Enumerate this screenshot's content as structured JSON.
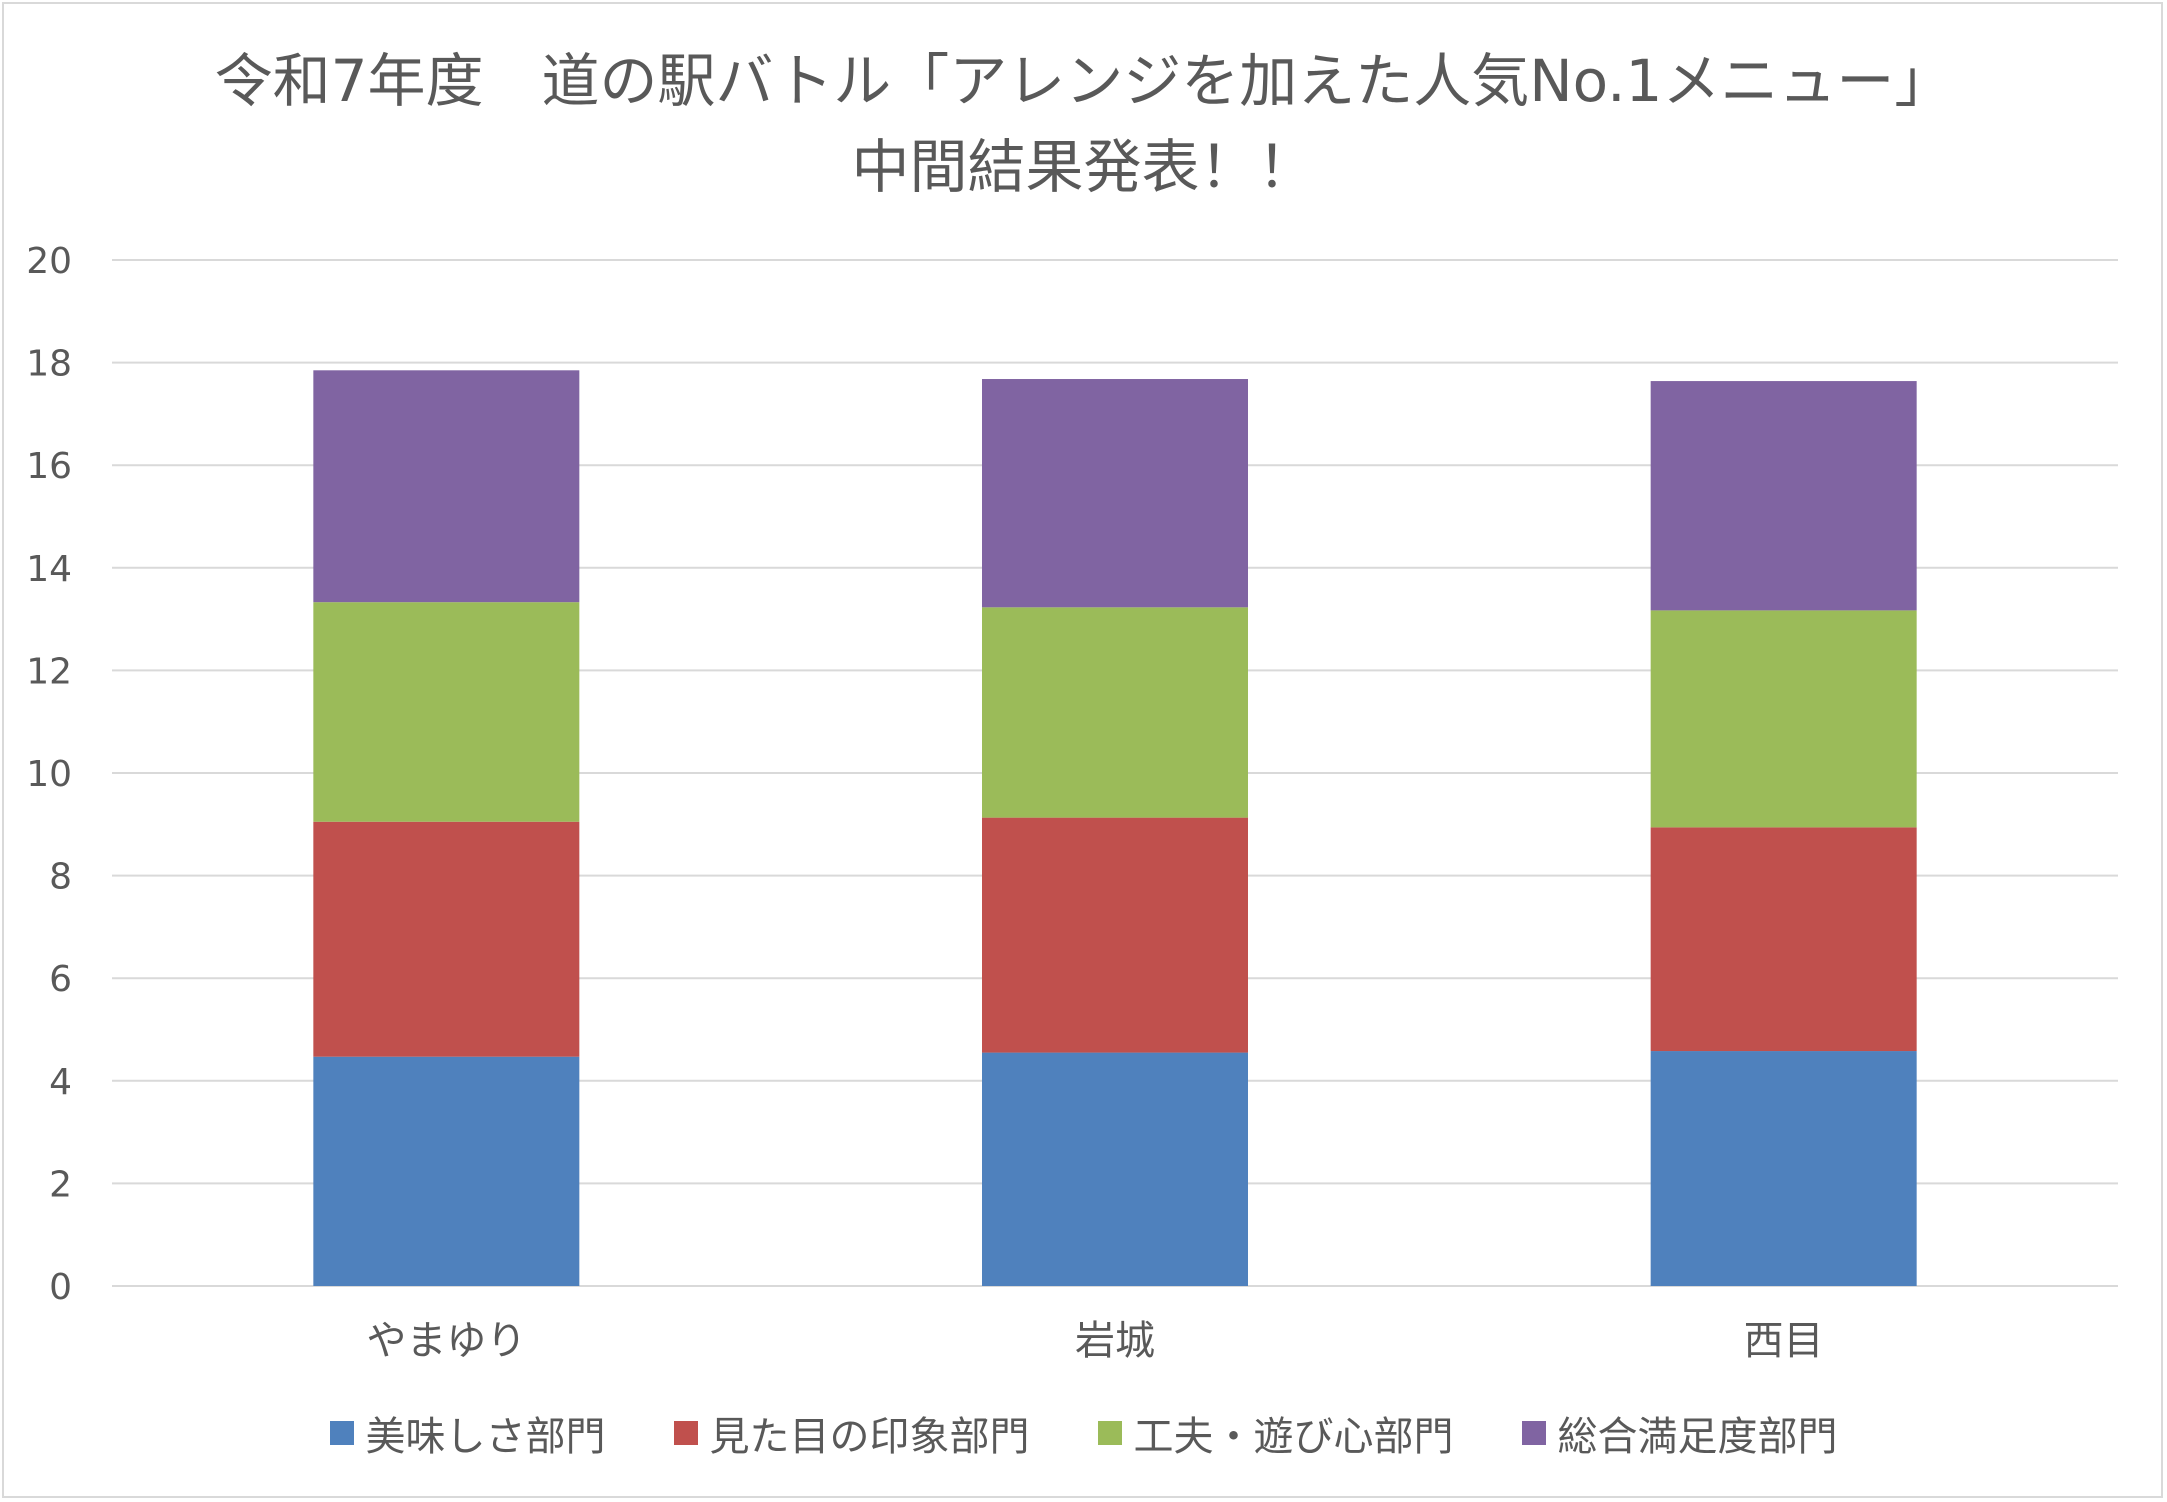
{
  "chart_data": {
    "type": "bar",
    "stacked": true,
    "title": [
      "令和7年度　道の駅バトル「アレンジを加えた人気No.1メニュー」",
      "中間結果発表！！"
    ],
    "categories": [
      "やまゆり",
      "岩城",
      "西目"
    ],
    "series": [
      {
        "name": "美味しさ部門",
        "color": "#4F81BD",
        "values": [
          4.47,
          4.55,
          4.58
        ]
      },
      {
        "name": "見た目の印象部門",
        "color": "#C0504D",
        "values": [
          4.58,
          4.58,
          4.36
        ]
      },
      {
        "name": "工夫・遊び心部門",
        "color": "#9BBB59",
        "values": [
          4.28,
          4.1,
          4.23
        ]
      },
      {
        "name": "総合満足度部門",
        "color": "#8064A2",
        "values": [
          4.52,
          4.45,
          4.47
        ]
      }
    ],
    "ylim": [
      0,
      20
    ],
    "yticks": [
      0,
      2,
      4,
      6,
      8,
      10,
      12,
      14,
      16,
      18,
      20
    ],
    "grid": true,
    "legend": "bottom",
    "xlabel": "",
    "ylabel": ""
  }
}
